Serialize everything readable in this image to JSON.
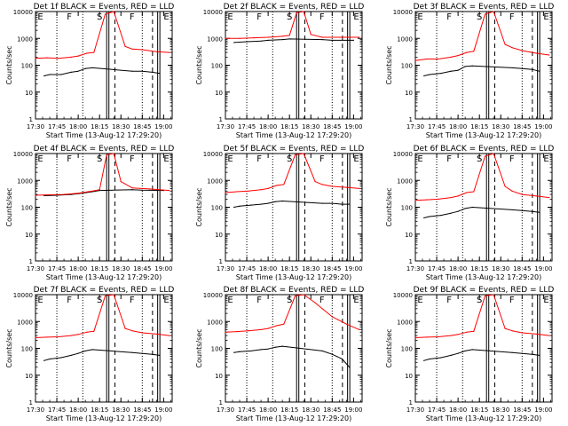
{
  "chart_data": [
    {
      "type": "line",
      "title": "Det 1f BLACK = Events, RED = LLD",
      "xlabel": "Start Time (13-Aug-12 17:29:20)",
      "ylabel": "Counts/sec",
      "ylim": [
        1,
        10000
      ],
      "y_scale": "log",
      "x_range": [
        "17:30",
        "19:06"
      ],
      "x_ticks": [
        "17:30",
        "17:45",
        "18:00",
        "18:15",
        "18:30",
        "18:45",
        "19:00"
      ],
      "y_ticks": [
        "1",
        "10",
        "100",
        "1000",
        "10000"
      ],
      "segment_letters": [
        "E",
        "F",
        "S",
        "F",
        "E"
      ],
      "series": [
        {
          "color": "#000000",
          "x": [
            "17:36",
            "17:40",
            "17:48",
            "17:55",
            "18:00",
            "18:05",
            "18:10",
            "18:38",
            "18:45",
            "18:52",
            "18:57"
          ],
          "values": [
            40,
            45,
            45,
            55,
            60,
            75,
            80,
            60,
            60,
            55,
            50
          ]
        },
        {
          "color": "#ff0000",
          "x": [
            "17:30",
            "17:38",
            "17:46",
            "17:55",
            "18:00",
            "18:06",
            "18:11",
            "18:19",
            "18:25",
            "18:33",
            "18:38",
            "18:45",
            "18:55",
            "19:04"
          ],
          "values": [
            180,
            190,
            180,
            200,
            220,
            280,
            300,
            8000,
            10000,
            500,
            400,
            380,
            320,
            300
          ]
        }
      ]
    },
    {
      "type": "line",
      "title": "Det 2f BLACK = Events, RED = LLD",
      "xlabel": "Start Time (13-Aug-12 17:29:20)",
      "ylabel": "Counts/sec",
      "ylim": [
        1,
        10000
      ],
      "y_scale": "log",
      "x_range": [
        "17:30",
        "19:06"
      ],
      "x_ticks": [
        "17:30",
        "17:45",
        "18:00",
        "18:15",
        "18:30",
        "18:45",
        "19:00"
      ],
      "y_ticks": [
        "1",
        "10",
        "100",
        "1000",
        "10000"
      ],
      "segment_letters": [
        "E",
        "F",
        "S",
        "F",
        "E"
      ],
      "series": [
        {
          "color": "#000000",
          "x": [
            "17:36",
            "17:45",
            "17:55",
            "18:00",
            "18:10",
            "18:15",
            "18:38",
            "18:45",
            "19:00"
          ],
          "values": [
            700,
            750,
            800,
            850,
            900,
            950,
            900,
            850,
            850
          ]
        },
        {
          "color": "#ff0000",
          "x": [
            "17:30",
            "17:40",
            "17:50",
            "18:00",
            "18:10",
            "18:15",
            "18:20",
            "18:25",
            "18:30",
            "18:38",
            "18:50",
            "19:04"
          ],
          "values": [
            1000,
            1000,
            1050,
            1100,
            1200,
            1300,
            9000,
            10000,
            1400,
            1100,
            1100,
            1100
          ]
        }
      ]
    },
    {
      "type": "line",
      "title": "Det 3f BLACK = Events, RED = LLD",
      "xlabel": "Start Time (13-Aug-12 17:29:20)",
      "ylabel": "Counts/sec",
      "ylim": [
        1,
        10000
      ],
      "y_scale": "log",
      "x_range": [
        "17:30",
        "19:06"
      ],
      "x_ticks": [
        "17:30",
        "17:45",
        "18:00",
        "18:15",
        "18:30",
        "18:45",
        "19:00"
      ],
      "y_ticks": [
        "1",
        "10",
        "100",
        "1000",
        "10000"
      ],
      "segment_letters": [
        "E",
        "F",
        "S",
        "F",
        "E"
      ],
      "series": [
        {
          "color": "#000000",
          "x": [
            "17:36",
            "17:40",
            "17:48",
            "17:55",
            "18:00",
            "18:05",
            "18:10",
            "18:38",
            "18:45",
            "18:52",
            "18:57"
          ],
          "values": [
            40,
            45,
            50,
            60,
            65,
            90,
            95,
            80,
            75,
            70,
            60
          ]
        },
        {
          "color": "#ff0000",
          "x": [
            "17:30",
            "17:38",
            "17:46",
            "17:55",
            "18:00",
            "18:06",
            "18:11",
            "18:19",
            "18:25",
            "18:33",
            "18:38",
            "18:45",
            "18:55",
            "19:04"
          ],
          "values": [
            150,
            170,
            170,
            200,
            230,
            300,
            330,
            8000,
            10000,
            600,
            450,
            350,
            280,
            240
          ]
        }
      ]
    },
    {
      "type": "line",
      "title": "Det 4f BLACK = Events, RED = LLD",
      "xlabel": "Start Time (13-Aug-12 17:29:20)",
      "ylabel": "Counts/sec",
      "ylim": [
        1,
        10000
      ],
      "y_scale": "log",
      "x_range": [
        "17:30",
        "19:06"
      ],
      "x_ticks": [
        "17:30",
        "17:45",
        "18:00",
        "18:15",
        "18:30",
        "18:45",
        "19:00"
      ],
      "y_ticks": [
        "1",
        "10",
        "100",
        "1000",
        "10000"
      ],
      "segment_letters": [
        "E",
        "F",
        "S",
        "F",
        "E"
      ],
      "series": [
        {
          "color": "#000000",
          "x": [
            "17:36",
            "17:45",
            "17:55",
            "18:00",
            "18:10",
            "18:15",
            "18:38",
            "18:45",
            "19:00"
          ],
          "values": [
            270,
            280,
            300,
            320,
            380,
            420,
            450,
            430,
            420
          ]
        },
        {
          "color": "#ff0000",
          "x": [
            "17:30",
            "17:40",
            "17:50",
            "18:00",
            "18:10",
            "18:15",
            "18:20",
            "18:25",
            "18:30",
            "18:38",
            "18:50",
            "19:04"
          ],
          "values": [
            280,
            290,
            300,
            330,
            400,
            450,
            9000,
            10000,
            900,
            520,
            480,
            420
          ]
        }
      ]
    },
    {
      "type": "line",
      "title": "Det 5f BLACK = Events, RED = LLD",
      "xlabel": "Start Time (13-Aug-12 17:29:20)",
      "ylabel": "Counts/sec",
      "ylim": [
        1,
        10000
      ],
      "y_scale": "log",
      "x_range": [
        "17:30",
        "19:06"
      ],
      "x_ticks": [
        "17:30",
        "17:45",
        "18:00",
        "18:15",
        "18:30",
        "18:45",
        "19:00"
      ],
      "y_ticks": [
        "1",
        "10",
        "100",
        "1000",
        "10000"
      ],
      "segment_letters": [
        "E",
        "F",
        "S",
        "F",
        "E"
      ],
      "series": [
        {
          "color": "#000000",
          "x": [
            "17:36",
            "17:40",
            "17:48",
            "17:55",
            "18:00",
            "18:05",
            "18:10",
            "18:38",
            "18:45",
            "18:52",
            "18:57"
          ],
          "values": [
            100,
            110,
            120,
            130,
            140,
            160,
            170,
            140,
            140,
            130,
            130
          ]
        },
        {
          "color": "#ff0000",
          "x": [
            "17:30",
            "17:38",
            "17:46",
            "17:55",
            "18:00",
            "18:06",
            "18:11",
            "18:19",
            "18:25",
            "18:33",
            "18:38",
            "18:45",
            "18:55",
            "19:04"
          ],
          "values": [
            350,
            380,
            400,
            450,
            500,
            650,
            700,
            9000,
            10000,
            900,
            700,
            600,
            550,
            500
          ]
        }
      ]
    },
    {
      "type": "line",
      "title": "Det 6f BLACK = Events, RED = LLD",
      "xlabel": "Start Time (13-Aug-12 17:29:20)",
      "ylabel": "Counts/sec",
      "ylim": [
        1,
        10000
      ],
      "y_scale": "log",
      "x_range": [
        "17:30",
        "19:06"
      ],
      "x_ticks": [
        "17:30",
        "17:45",
        "18:00",
        "18:15",
        "18:30",
        "18:45",
        "19:00"
      ],
      "y_ticks": [
        "1",
        "10",
        "100",
        "1000",
        "10000"
      ],
      "segment_letters": [
        "E",
        "F",
        "S",
        "F",
        "E"
      ],
      "series": [
        {
          "color": "#000000",
          "x": [
            "17:36",
            "17:40",
            "17:48",
            "17:55",
            "18:00",
            "18:05",
            "18:10",
            "18:38",
            "18:45",
            "18:52",
            "18:57"
          ],
          "values": [
            40,
            45,
            50,
            60,
            70,
            90,
            100,
            80,
            75,
            70,
            65
          ]
        },
        {
          "color": "#ff0000",
          "x": [
            "17:30",
            "17:38",
            "17:46",
            "17:55",
            "18:00",
            "18:06",
            "18:11",
            "18:19",
            "18:25",
            "18:33",
            "18:38",
            "18:45",
            "18:55",
            "19:04"
          ],
          "values": [
            180,
            190,
            200,
            230,
            260,
            350,
            380,
            8000,
            10000,
            600,
            400,
            300,
            260,
            230
          ]
        }
      ]
    },
    {
      "type": "line",
      "title": "Det 7f BLACK = Events, RED = LLD",
      "xlabel": "Start Time (13-Aug-12 17:29:20)",
      "ylabel": "Counts/sec",
      "ylim": [
        1,
        10000
      ],
      "y_scale": "log",
      "x_range": [
        "17:30",
        "19:06"
      ],
      "x_ticks": [
        "17:30",
        "17:45",
        "18:00",
        "18:15",
        "18:30",
        "18:45",
        "19:00"
      ],
      "y_ticks": [
        "1",
        "10",
        "100",
        "1000",
        "10000"
      ],
      "segment_letters": [
        "E",
        "F",
        "S",
        "F",
        "E"
      ],
      "series": [
        {
          "color": "#000000",
          "x": [
            "17:36",
            "17:40",
            "17:48",
            "17:55",
            "18:00",
            "18:05",
            "18:10",
            "18:38",
            "18:45",
            "18:52",
            "18:57"
          ],
          "values": [
            35,
            40,
            45,
            55,
            65,
            80,
            90,
            70,
            65,
            60,
            55
          ]
        },
        {
          "color": "#ff0000",
          "x": [
            "17:30",
            "17:38",
            "17:46",
            "17:55",
            "18:00",
            "18:06",
            "18:11",
            "18:19",
            "18:25",
            "18:33",
            "18:38",
            "18:45",
            "18:55",
            "19:04"
          ],
          "values": [
            250,
            260,
            270,
            300,
            330,
            400,
            430,
            9000,
            10000,
            550,
            450,
            380,
            340,
            300
          ]
        }
      ]
    },
    {
      "type": "line",
      "title": "Det 8f BLACK = Events, RED = LLD",
      "xlabel": "Start Time (13-Aug-12 17:29:20)",
      "ylabel": "Counts/sec",
      "ylim": [
        1,
        10000
      ],
      "y_scale": "log",
      "x_range": [
        "17:30",
        "19:06"
      ],
      "x_ticks": [
        "17:30",
        "17:45",
        "18:00",
        "18:15",
        "18:30",
        "18:45",
        "19:00"
      ],
      "y_ticks": [
        "1",
        "10",
        "100",
        "1000",
        "10000"
      ],
      "segment_letters": [
        "E",
        "F",
        "S",
        "F",
        "E"
      ],
      "series": [
        {
          "color": "#000000",
          "x": [
            "17:36",
            "17:40",
            "17:48",
            "17:55",
            "18:00",
            "18:05",
            "18:10",
            "18:38",
            "18:45",
            "18:52",
            "18:57"
          ],
          "values": [
            70,
            75,
            80,
            90,
            95,
            110,
            120,
            80,
            60,
            40,
            20
          ]
        },
        {
          "color": "#ff0000",
          "x": [
            "17:30",
            "17:38",
            "17:46",
            "17:55",
            "18:00",
            "18:06",
            "18:11",
            "18:19",
            "18:25",
            "18:33",
            "18:38",
            "18:45",
            "18:55",
            "19:04"
          ],
          "values": [
            400,
            420,
            450,
            500,
            550,
            700,
            800,
            9000,
            10000,
            5000,
            3000,
            1500,
            800,
            500
          ]
        }
      ]
    },
    {
      "type": "line",
      "title": "Det 9f BLACK = Events, RED = LLD",
      "xlabel": "Start Time (13-Aug-12 17:29:20)",
      "ylabel": "Counts/sec",
      "ylim": [
        1,
        10000
      ],
      "y_scale": "log",
      "x_range": [
        "17:30",
        "19:06"
      ],
      "x_ticks": [
        "17:30",
        "17:45",
        "18:00",
        "18:15",
        "18:30",
        "18:45",
        "19:00"
      ],
      "y_ticks": [
        "1",
        "10",
        "100",
        "1000",
        "10000"
      ],
      "segment_letters": [
        "E",
        "F",
        "S",
        "F",
        "E"
      ],
      "series": [
        {
          "color": "#000000",
          "x": [
            "17:36",
            "17:40",
            "17:48",
            "17:55",
            "18:00",
            "18:05",
            "18:10",
            "18:38",
            "18:45",
            "18:52",
            "18:57"
          ],
          "values": [
            35,
            40,
            45,
            55,
            65,
            80,
            90,
            70,
            65,
            60,
            55
          ]
        },
        {
          "color": "#ff0000",
          "x": [
            "17:30",
            "17:38",
            "17:46",
            "17:55",
            "18:00",
            "18:06",
            "18:11",
            "18:19",
            "18:25",
            "18:33",
            "18:38",
            "18:45",
            "18:55",
            "19:04"
          ],
          "values": [
            250,
            260,
            270,
            300,
            330,
            400,
            430,
            9000,
            10000,
            550,
            450,
            380,
            340,
            300
          ]
        }
      ]
    }
  ]
}
